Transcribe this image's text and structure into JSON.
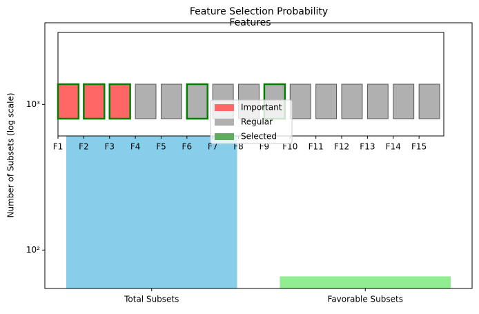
{
  "chart_data": {
    "type": "bar",
    "title": "Feature Selection Probability",
    "ylabel": "Number of Subsets (log scale)",
    "categories": [
      "Total Subsets",
      "Favorable Subsets"
    ],
    "values": [
      3003,
      66
    ],
    "colors": [
      "#87ceeb",
      "#90ee90"
    ],
    "log_y": true,
    "ylim": [
      54.5,
      3636
    ],
    "yticks": [
      {
        "value": 100,
        "label": "10²"
      },
      {
        "value": 1000,
        "label": "10³"
      }
    ]
  },
  "inset": {
    "title": "Features",
    "features": [
      {
        "label": "F1",
        "important": true,
        "selected": true
      },
      {
        "label": "F2",
        "important": true,
        "selected": true
      },
      {
        "label": "F3",
        "important": true,
        "selected": true
      },
      {
        "label": "F4",
        "important": false,
        "selected": false
      },
      {
        "label": "F5",
        "important": false,
        "selected": false
      },
      {
        "label": "F6",
        "important": false,
        "selected": true
      },
      {
        "label": "F7",
        "important": false,
        "selected": false
      },
      {
        "label": "F8",
        "important": false,
        "selected": false
      },
      {
        "label": "F9",
        "important": false,
        "selected": true
      },
      {
        "label": "F10",
        "important": false,
        "selected": false
      },
      {
        "label": "F11",
        "important": false,
        "selected": false
      },
      {
        "label": "F12",
        "important": false,
        "selected": false
      },
      {
        "label": "F13",
        "important": false,
        "selected": false
      },
      {
        "label": "F14",
        "important": false,
        "selected": false
      },
      {
        "label": "F15",
        "important": false,
        "selected": false
      }
    ],
    "legend": [
      {
        "label": "Important",
        "color": "#ff6666"
      },
      {
        "label": "Regular",
        "color": "#b0b0b0"
      },
      {
        "label": "Selected",
        "color": "#60ad60"
      }
    ],
    "selected_edge": "#008000"
  }
}
